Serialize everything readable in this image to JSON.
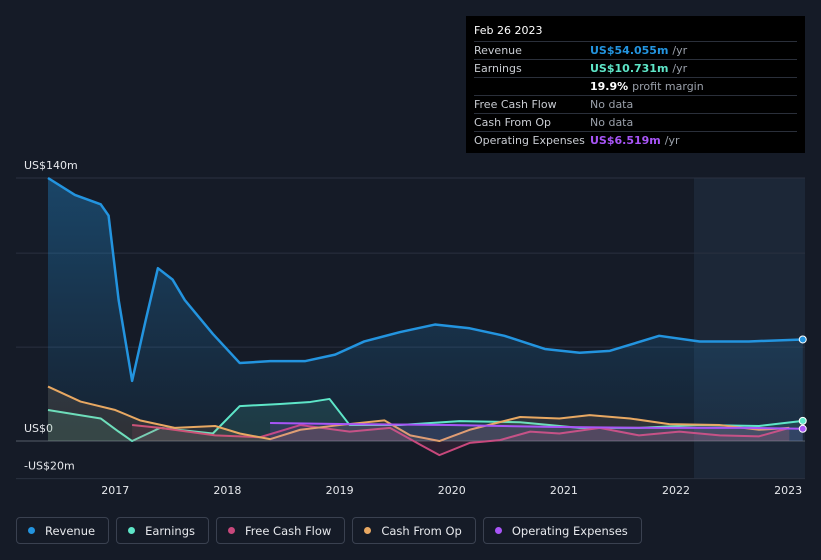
{
  "chart_data": {
    "type": "line",
    "xlim": [
      2016.4,
      2023.15
    ],
    "xticks": [
      2017,
      2018,
      2019,
      2020,
      2021,
      2022,
      2023
    ],
    "ylim": [
      -20,
      140
    ],
    "yticks": [
      {
        "value": -20,
        "label": "-US$20m"
      },
      {
        "value": 0,
        "label": "US$0"
      },
      {
        "value": 50,
        "label": null
      },
      {
        "value": 100,
        "label": null
      },
      {
        "value": 140,
        "label": "US$140m"
      }
    ],
    "grid": true,
    "highlight_xlim": [
      2022.16,
      2023.15
    ],
    "series": [
      {
        "name": "Revenue",
        "color": "#2394df",
        "x": [
          2016.4,
          2016.64,
          2016.87,
          2016.94,
          2017.03,
          2017.15,
          2017.27,
          2017.38,
          2017.51,
          2017.62,
          2017.87,
          2018.11,
          2018.38,
          2018.69,
          2018.96,
          2019.22,
          2019.54,
          2019.85,
          2020.16,
          2020.47,
          2020.83,
          2021.14,
          2021.41,
          2021.85,
          2022.21,
          2022.65,
          2023.13
        ],
        "values": [
          140,
          131,
          126,
          120,
          75,
          32,
          64,
          92,
          86,
          75,
          57,
          41.5,
          42.5,
          42.5,
          46,
          53,
          58,
          62,
          60,
          56,
          49,
          47,
          48,
          56,
          53,
          53,
          54.055
        ]
      },
      {
        "name": "Earnings",
        "color": "#5ee6c8",
        "x": [
          2016.4,
          2016.87,
          2017.03,
          2017.15,
          2017.4,
          2017.87,
          2018.11,
          2018.47,
          2018.74,
          2018.91,
          2019.09,
          2019.54,
          2020.07,
          2020.61,
          2021.14,
          2021.67,
          2022.21,
          2022.74,
          2023.13
        ],
        "values": [
          16.5,
          12,
          5,
          0,
          7,
          4,
          18.6,
          19.7,
          20.8,
          22.4,
          8.5,
          8.5,
          10.6,
          10,
          7,
          7,
          8.5,
          8,
          10.731
        ]
      },
      {
        "name": "Free Cash Flow",
        "color": "#c8487c",
        "x": [
          2017.15,
          2017.4,
          2017.89,
          2018.29,
          2018.65,
          2019.09,
          2019.45,
          2019.72,
          2019.89,
          2020.16,
          2020.43,
          2020.7,
          2020.96,
          2021.32,
          2021.67,
          2022.03,
          2022.39,
          2022.74,
          2023.01
        ],
        "values": [
          8.5,
          7,
          3,
          2,
          8.5,
          5,
          7,
          -2,
          -7.5,
          -1,
          0.5,
          5,
          4,
          7,
          3,
          5,
          3,
          2.5,
          7
        ]
      },
      {
        "name": "Cash From Op",
        "color": "#e8a862",
        "x": [
          2016.4,
          2016.69,
          2017.0,
          2017.22,
          2017.53,
          2017.89,
          2018.11,
          2018.38,
          2018.65,
          2019.0,
          2019.4,
          2019.63,
          2019.89,
          2020.16,
          2020.61,
          2020.96,
          2021.23,
          2021.59,
          2021.94,
          2022.39,
          2022.74,
          2023.01
        ],
        "values": [
          29,
          21,
          16.5,
          11,
          7,
          8,
          4,
          1,
          6,
          8.5,
          11,
          3,
          0,
          6,
          12.8,
          12,
          13.8,
          12,
          9,
          8.5,
          6,
          7
        ]
      },
      {
        "name": "Operating Expenses",
        "color": "#a855f7",
        "x": [
          2018.38,
          2019.09,
          2019.98,
          2020.87,
          2021.76,
          2022.65,
          2023.13
        ],
        "values": [
          9.6,
          9,
          8.5,
          7.5,
          7,
          7,
          6.519
        ]
      }
    ]
  },
  "tooltip": {
    "date": "Feb 26 2023",
    "rows": [
      {
        "label": "Revenue",
        "value": "US$54.055m",
        "unit": "/yr"
      },
      {
        "label": "Earnings",
        "value": "US$10.731m",
        "unit": "/yr"
      },
      {
        "label": null,
        "value": "19.9%",
        "unit": "profit margin"
      },
      {
        "label": "Free Cash Flow",
        "value": null,
        "unit": "No data"
      },
      {
        "label": "Cash From Op",
        "value": null,
        "unit": "No data"
      },
      {
        "label": "Operating Expenses",
        "value": "US$6.519m",
        "unit": "/yr"
      }
    ]
  }
}
